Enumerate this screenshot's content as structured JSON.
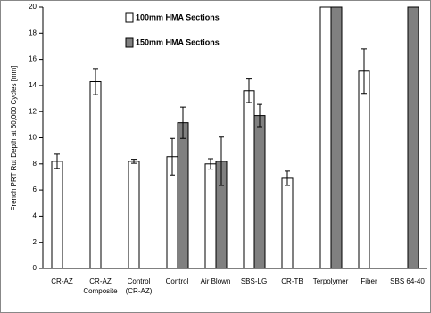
{
  "chart_data": {
    "type": "bar",
    "y_label": "French PRT Rut Depth at 60,000 Cycles [mm]",
    "categories": [
      "CR-AZ",
      "CR-AZ\nComposite",
      "Control\n(CR-AZ)",
      "Control",
      "Air Blown",
      "SBS-LG",
      "CR-TB",
      "Terpolymer",
      "Fiber",
      "SBS 64-40"
    ],
    "series": [
      {
        "name": "100mm HMA Sections",
        "color": "#ffffff",
        "values": [
          8.2,
          14.3,
          8.2,
          8.55,
          8.0,
          13.6,
          6.9,
          20,
          15.1,
          null
        ],
        "errors": [
          0.55,
          1.0,
          0.15,
          1.4,
          0.4,
          0.9,
          0.55,
          null,
          1.7,
          null
        ]
      },
      {
        "name": "150mm HMA Sections",
        "color": "#808080",
        "values": [
          null,
          null,
          null,
          11.15,
          8.2,
          11.7,
          null,
          20,
          null,
          20
        ],
        "errors": [
          null,
          null,
          null,
          1.2,
          1.85,
          0.85,
          null,
          null,
          null,
          null
        ]
      }
    ],
    "ylim": [
      0,
      20
    ],
    "yticks": [
      0,
      2,
      4,
      6,
      8,
      10,
      12,
      14,
      16,
      18,
      20
    ]
  }
}
